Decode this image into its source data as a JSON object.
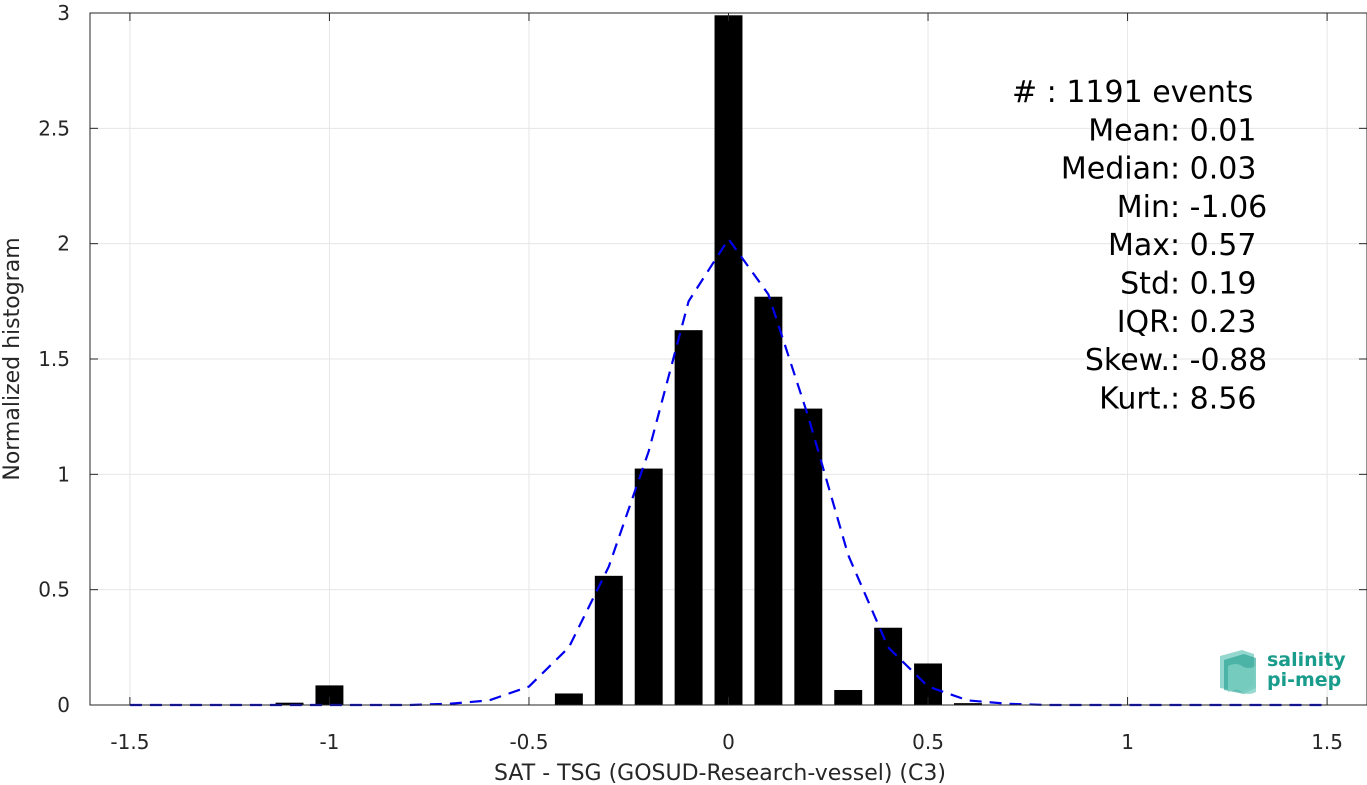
{
  "chart_data": {
    "type": "bar",
    "xlabel": "SAT - TSG (GOSUD-Research-vessel) (C3)",
    "ylabel": "Normalized histogram",
    "xlim": [
      -1.6,
      1.6
    ],
    "ylim": [
      0,
      3
    ],
    "xticks": [
      -1.5,
      -1,
      -0.5,
      0,
      0.5,
      1,
      1.5
    ],
    "xtick_labels": [
      "-1.5",
      "-1",
      "-0.5",
      "0",
      "0.5",
      "1",
      "1.5"
    ],
    "yticks": [
      0,
      0.5,
      1,
      1.5,
      2,
      2.5,
      3
    ],
    "ytick_labels": [
      "0",
      "0.5",
      "1",
      "1.5",
      "2",
      "2.5",
      "3"
    ],
    "grid": true,
    "bar_width": 0.07,
    "bars": {
      "x": [
        -1.1,
        -1.0,
        -0.4,
        -0.3,
        -0.2,
        -0.1,
        0.0,
        0.1,
        0.2,
        0.3,
        0.4,
        0.5,
        0.6
      ],
      "values": [
        0.01,
        0.085,
        0.05,
        0.56,
        1.025,
        1.625,
        2.99,
        1.77,
        1.285,
        0.065,
        0.335,
        0.18,
        0.008
      ],
      "color": "#000000"
    },
    "fit_curve": {
      "style": "dashed",
      "color": "#0000ee",
      "x": [
        -1.5,
        -1.4,
        -1.3,
        -1.2,
        -1.1,
        -1.0,
        -0.9,
        -0.8,
        -0.7,
        -0.6,
        -0.5,
        -0.4,
        -0.3,
        -0.2,
        -0.1,
        0.0,
        0.1,
        0.2,
        0.3,
        0.4,
        0.5,
        0.6,
        0.7,
        0.8,
        0.9,
        1.0,
        1.1,
        1.2,
        1.3,
        1.4,
        1.5
      ],
      "y": [
        0,
        0,
        0,
        0,
        0,
        0,
        0,
        0,
        0.005,
        0.02,
        0.08,
        0.25,
        0.6,
        1.1,
        1.75,
        2.02,
        1.78,
        1.25,
        0.65,
        0.25,
        0.08,
        0.02,
        0.005,
        0,
        0,
        0,
        0,
        0,
        0,
        0,
        0
      ]
    },
    "stats": [
      {
        "label": "#",
        "sep": " : ",
        "value": "1191 events",
        "gap": true
      },
      {
        "label": "Mean",
        "sep": " : ",
        "value": "0.01"
      },
      {
        "label": "Median",
        "sep": " : ",
        "value": "0.03"
      },
      {
        "label": "Min",
        "sep": " : ",
        "value": "-1.06"
      },
      {
        "label": "Max",
        "sep": " : ",
        "value": "0.57"
      },
      {
        "label": "Std",
        "sep": " : ",
        "value": "0.19"
      },
      {
        "label": "IQR",
        "sep": " : ",
        "value": "0.23"
      },
      {
        "label": "Skew.",
        "sep": " : ",
        "value": "-0.88"
      },
      {
        "label": "Kurt.",
        "sep": " : ",
        "value": "8.56"
      }
    ]
  },
  "logo": {
    "line1": "salinity",
    "line2": "pi-mep",
    "color": "#1a9c8c"
  }
}
